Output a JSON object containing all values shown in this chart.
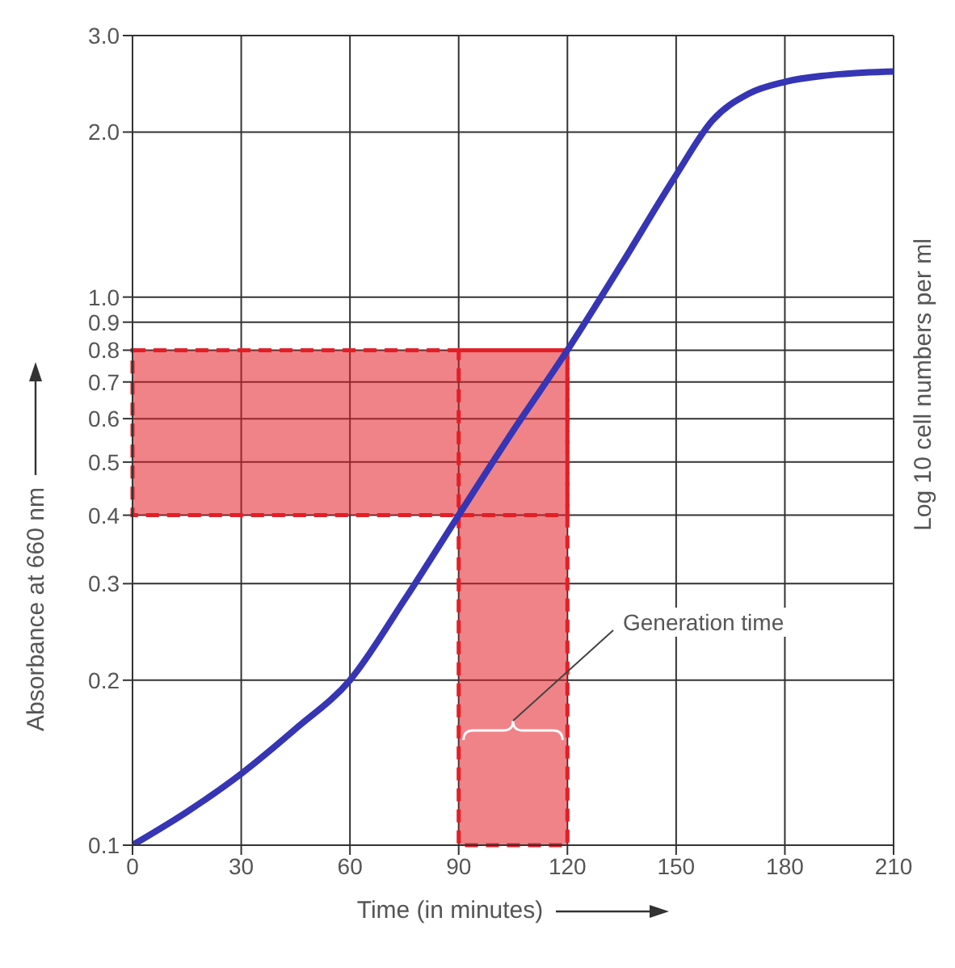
{
  "chart_data": {
    "type": "line",
    "xlabel": "Time (in minutes)",
    "ylabel": "Absorbance at 660 nm",
    "y2label": "Log 10 cell numbers per ml",
    "x": [
      0,
      15,
      30,
      45,
      60,
      75,
      90,
      105,
      120,
      135,
      150,
      160,
      170,
      180,
      195,
      210
    ],
    "series": [
      {
        "color": "#3535b5",
        "values": [
          0.1,
          0.115,
          0.135,
          0.163,
          0.2,
          0.28,
          0.4,
          0.57,
          0.8,
          1.15,
          1.67,
          2.1,
          2.35,
          2.47,
          2.55,
          2.58
        ]
      }
    ],
    "log": "y",
    "xlim": [
      0,
      210
    ],
    "xticks": [
      0,
      30,
      60,
      90,
      120,
      150,
      180,
      210
    ],
    "ylim": [
      0.1,
      3.0
    ],
    "yticks": [
      0.1,
      0.2,
      0.3,
      0.4,
      0.5,
      0.6,
      0.7,
      0.8,
      0.9,
      {
        "value": 1.0,
        "label": "1.0"
      },
      {
        "value": 2.0,
        "label": "2.0"
      },
      {
        "value": 3.0,
        "label": "3.0"
      }
    ],
    "bands": [
      {
        "axis": "y",
        "from": 0.4,
        "to": 0.8,
        "color": "#e41e26"
      },
      {
        "axis": "x",
        "from": 90,
        "to": 120,
        "color": "#e41e26"
      }
    ],
    "annotations": [
      "Generation time"
    ],
    "grid": true,
    "marker": "none",
    "line_style": "solid",
    "legend": false
  }
}
